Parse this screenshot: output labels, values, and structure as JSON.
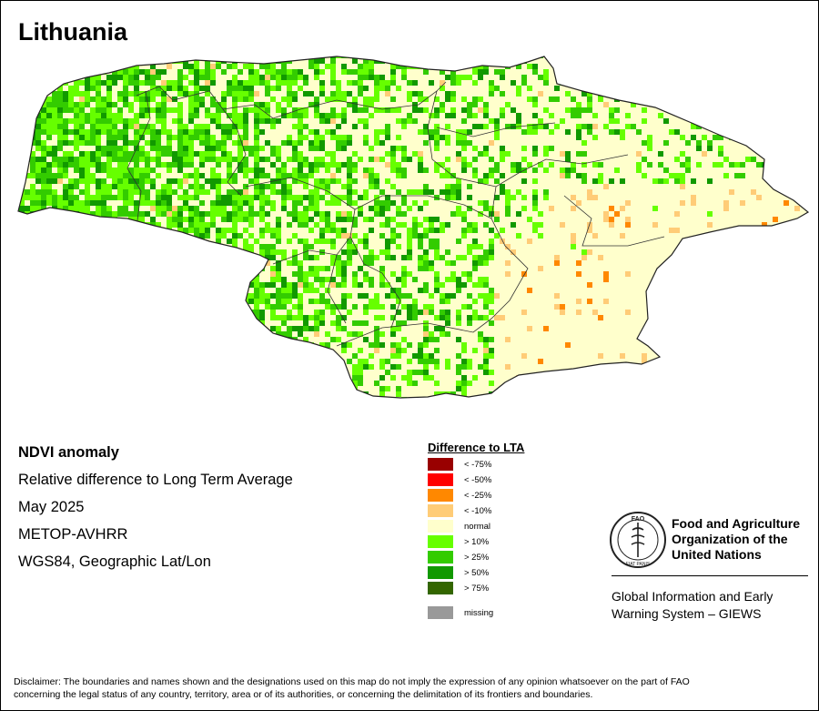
{
  "map": {
    "title": "Lithuania"
  },
  "info": {
    "product": "NDVI anomaly",
    "description": "Relative difference to Long Term Average",
    "period": "May 2025",
    "sensor": "METOP-AVHRR",
    "projection": "WGS84, Geographic Lat/Lon"
  },
  "legend": {
    "title": "Difference to LTA",
    "items": [
      {
        "label": "< -75%",
        "color": "#990000"
      },
      {
        "label": "< -50%",
        "color": "#ff0000"
      },
      {
        "label": "< -25%",
        "color": "#ff8800"
      },
      {
        "label": "< -10%",
        "color": "#ffcc77"
      },
      {
        "label": "normal",
        "color": "#ffffcc"
      },
      {
        "label": "> 10%",
        "color": "#66ff00"
      },
      {
        "label": "> 25%",
        "color": "#33cc00"
      },
      {
        "label": "> 50%",
        "color": "#119900"
      },
      {
        "label": "> 75%",
        "color": "#336600"
      }
    ],
    "missing": {
      "label": "missing",
      "color": "#999999"
    }
  },
  "logo": {
    "org_line1": "Food and Agriculture",
    "org_line2": "Organization of the",
    "org_line3": "United Nations",
    "giews_line1": "Global Information and Early",
    "giews_line2": "Warning System – GIEWS",
    "emblem_text": "FAO",
    "motto": "FIAT PANIS"
  },
  "disclaimer": {
    "line1": "Disclaimer: The boundaries and names shown and the designations used on this map do not imply the expression of any opinion whatsoever on the part of FAO",
    "line2": "concerning the legal status of any country, territory, area or of its authorities, or concerning the delimitation of its frontiers and boundaries."
  }
}
